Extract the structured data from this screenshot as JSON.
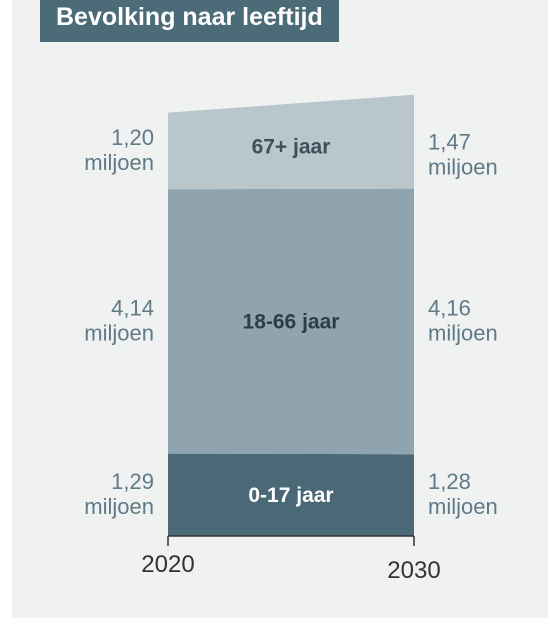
{
  "chart_data": {
    "type": "area",
    "title": "Bevolking naar leeftijd",
    "x": [
      "2020",
      "2030"
    ],
    "unit": "miljoen",
    "series": [
      {
        "name": "0-17 jaar",
        "values": [
          1.29,
          1.28
        ],
        "value_labels": [
          "1,29",
          "1,28"
        ],
        "color": "#4a6876",
        "label_color": "#ffffff"
      },
      {
        "name": "18-66 jaar",
        "values": [
          4.14,
          4.16
        ],
        "value_labels": [
          "4,14",
          "4,16"
        ],
        "color": "#8fa4ae",
        "label_color": "#2e3e46"
      },
      {
        "name": "67+ jaar",
        "values": [
          1.2,
          1.47
        ],
        "value_labels": [
          "1,20",
          "1,47"
        ],
        "color": "#b9c6cc",
        "label_color": "#3e5059"
      }
    ],
    "stacked": true,
    "grid": false,
    "legend": "none"
  }
}
